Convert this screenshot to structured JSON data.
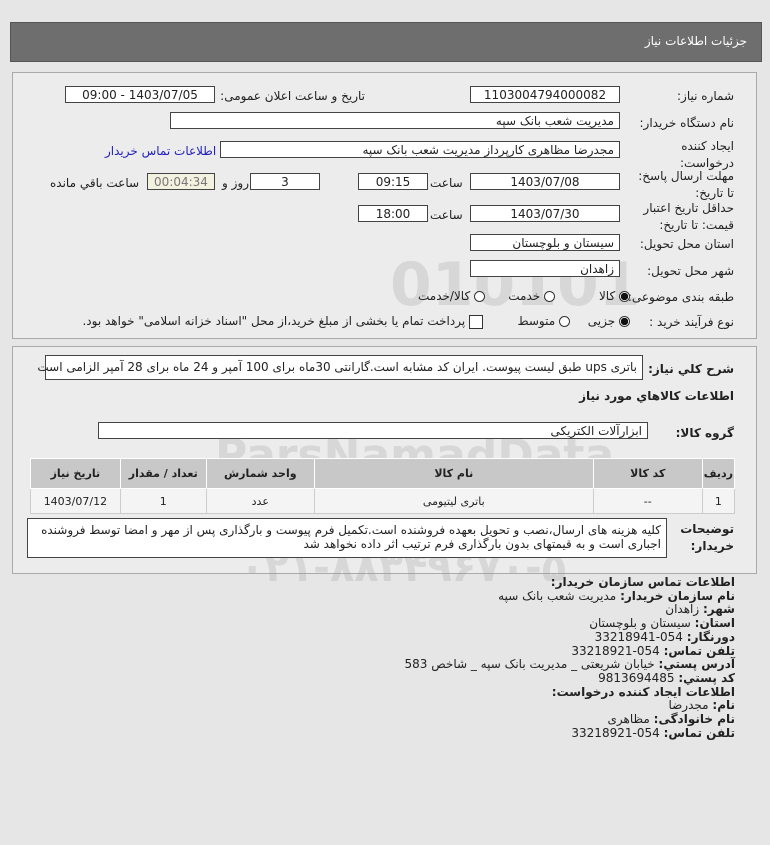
{
  "header": {
    "title": "جزئیات اطلاعات نیاز"
  },
  "form": {
    "need_number_label": "شماره نیاز:",
    "need_number": "1103004794000082",
    "announce_label": "تاریخ و ساعت اعلان عمومی:",
    "announce_value": "1403/07/05 - 09:00",
    "buyer_label": "نام دستگاه خریدار:",
    "buyer": "مدیریت شعب بانک سپه",
    "creator_label": "ایجاد کننده درخواست:",
    "creator": "مجدرضا مظاهری کارپرداز مدیریت شعب بانک سپه",
    "contact_link": "اطلاعات تماس خریدار",
    "deadline_label": "مهلت ارسال پاسخ: تا تاریخ:",
    "deadline_date": "1403/07/08",
    "time_label": "ساعت",
    "deadline_time": "09:15",
    "days": "3",
    "days_label": "روز و",
    "countdown": "00:04:34",
    "remaining_label": "ساعت باقي مانده",
    "validity_label": "حداقل تاریخ اعتبار قیمت: تا تاریخ:",
    "validity_date": "1403/07/30",
    "validity_time": "18:00",
    "province_label": "استان محل تحویل:",
    "province": "سیستان و بلوچستان",
    "city_label": "شهر محل تحویل:",
    "city": "زاهدان",
    "category_label": "طبقه بندی موضوعی:",
    "category_options": [
      "کالا",
      "خدمت",
      "کالا/خدمت"
    ],
    "category_selected": "کالا",
    "process_label": "نوع فرآیند خرید :",
    "process_options": [
      "جزیی",
      "متوسط"
    ],
    "process_selected": "جزیی",
    "payment_note": "پرداخت تمام یا بخشی از مبلغ خرید،از محل \"اسناد خزانه اسلامی\" خواهد بود."
  },
  "details": {
    "desc_label": "شرح كلي نياز:",
    "desc": "باتری ups طبق لیست پیوست. ایران کد مشابه است.گارانتی 30ماه برای 100 آمپر و 24 ماه برای 28 آمپر الزامی است",
    "goods_title": "اطلاعات كالاهاي مورد نياز",
    "group_label": "گروه کالا:",
    "group": "ابزارآلات الکتریکی",
    "table": {
      "headers": [
        "ردیف",
        "کد کالا",
        "نام کالا",
        "واحد شمارش",
        "تعداد / مقدار",
        "تاریخ نیاز"
      ],
      "rows": [
        [
          "1",
          "--",
          "باتری لیتیومی",
          "عدد",
          "1",
          "1403/07/12"
        ]
      ]
    },
    "notes_label": "توضیحات خریدار:",
    "notes": "کلیه هزینه های ارسال،نصب و تحویل بعهده فروشنده است.تکمیل فرم پیوست و بارگذاری پس از مهر و امضا توسط فروشنده اجباری است و به قیمتهای بدون بارگذاری فرم ترتیب اثر داده نخواهد شد"
  },
  "contact": {
    "title": "اطلاعات تماس سازمان خریدار:",
    "org_label": "نام سازمان خریدار:",
    "org": "مدیریت شعب بانک سپه",
    "city_label": "شهر:",
    "city": "زاهدان",
    "province_label": "استان:",
    "province": "سیستان و بلوچستان",
    "fax_label": "دورنگار:",
    "fax": "054-33218941",
    "phone_label": "تلفن تماس:",
    "phone": "054-33218921",
    "address_label": "آدرس پستي:",
    "address": "خیابان شریعتی _ مدیریت بانک سپه _ شاخص 583",
    "postal_label": "کد پستي:",
    "postal": "9813694485",
    "creator_title": "اطلاعات ایجاد کننده درخواست:",
    "name_label": "نام:",
    "name": "مجدرضا",
    "family_label": "نام خانوادگی:",
    "family": "مظاهری",
    "cphone_label": "تلفن تماس:",
    "cphone": "054-33218921"
  },
  "watermark": {
    "text": "ParsNamadData",
    "phone": "۰۲۱-۸۸۳۴۹۶۷۰-۵"
  }
}
